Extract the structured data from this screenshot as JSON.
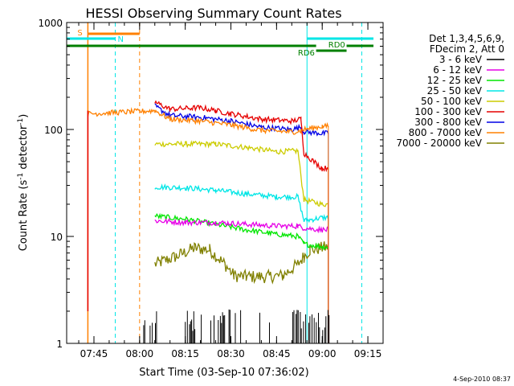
{
  "chart_data": {
    "type": "line",
    "title": "HESSI Observing Summary Count Rates",
    "xlabel": "Start Time (03-Sep-10 07:36:02)",
    "ylabel_main": "Count Rate (s",
    "ylabel_sup1": "-1",
    "ylabel_mid": " detector",
    "ylabel_sup2": "-1",
    "ylabel_end": ")",
    "y_scale": "log",
    "ylim": [
      1,
      1000
    ],
    "xlim": [
      "07:36:02",
      "09:20:00"
    ],
    "x_ticks": [
      "07:45",
      "08:00",
      "08:15",
      "08:30",
      "08:45",
      "09:00",
      "09:15"
    ],
    "y_ticks": [
      "1",
      "10",
      "100",
      "1000"
    ],
    "grid": false,
    "legend_placement": "right",
    "legend_header": [
      "Det 1,3,4,5,6,9,",
      "FDecim 2, Att 0"
    ],
    "series": [
      {
        "name": "3 - 6 keV",
        "color": "#000000",
        "points": [
          [
            "08:02",
            1.2
          ],
          [
            "08:05",
            1.5
          ],
          [
            "08:18",
            1.3
          ],
          [
            "08:22",
            1.6
          ],
          [
            "08:52",
            1.4
          ],
          [
            "09:00",
            1.8
          ]
        ]
      },
      {
        "name": "6 - 12 keV",
        "color": "#e600e6",
        "points": [
          [
            "08:05",
            14
          ],
          [
            "08:15",
            13.5
          ],
          [
            "08:25",
            13.5
          ],
          [
            "08:35",
            13
          ],
          [
            "08:45",
            12.5
          ],
          [
            "08:52",
            12.5
          ],
          [
            "08:54",
            12
          ],
          [
            "09:00",
            11.5
          ],
          [
            "09:02",
            11.5
          ]
        ]
      },
      {
        "name": "12 - 25 keV",
        "color": "#00e600",
        "points": [
          [
            "08:05",
            15.5
          ],
          [
            "08:15",
            14.5
          ],
          [
            "08:25",
            13
          ],
          [
            "08:35",
            11.5
          ],
          [
            "08:45",
            10.5
          ],
          [
            "08:52",
            10
          ],
          [
            "08:54",
            8.5
          ],
          [
            "09:00",
            8
          ],
          [
            "09:02",
            8
          ]
        ]
      },
      {
        "name": "25 - 50 keV",
        "color": "#00e6e6",
        "points": [
          [
            "08:05",
            29
          ],
          [
            "08:15",
            28.5
          ],
          [
            "08:25",
            27
          ],
          [
            "08:35",
            25
          ],
          [
            "08:45",
            23.5
          ],
          [
            "08:52",
            23.5
          ],
          [
            "08:54",
            14
          ],
          [
            "09:00",
            15
          ],
          [
            "09:02",
            15
          ]
        ]
      },
      {
        "name": "50 - 100 keV",
        "color": "#cccc00",
        "points": [
          [
            "08:05",
            73
          ],
          [
            "08:15",
            73
          ],
          [
            "08:25",
            73
          ],
          [
            "08:35",
            68
          ],
          [
            "08:45",
            62
          ],
          [
            "08:52",
            63
          ],
          [
            "08:54",
            22
          ],
          [
            "09:00",
            20
          ],
          [
            "09:02",
            20
          ]
        ]
      },
      {
        "name": "100 - 300 keV",
        "color": "#e60000",
        "points": [
          [
            "08:05",
            180
          ],
          [
            "08:10",
            155
          ],
          [
            "08:20",
            160
          ],
          [
            "08:25",
            150
          ],
          [
            "08:30",
            140
          ],
          [
            "08:40",
            125
          ],
          [
            "08:50",
            120
          ],
          [
            "08:53",
            125
          ],
          [
            "08:54",
            60
          ],
          [
            "09:00",
            43
          ],
          [
            "09:02",
            44
          ]
        ]
      },
      {
        "name": "300 - 800 keV",
        "color": "#0000e6",
        "points": [
          [
            "08:05",
            165
          ],
          [
            "08:10",
            135
          ],
          [
            "08:20",
            130
          ],
          [
            "08:30",
            120
          ],
          [
            "08:40",
            105
          ],
          [
            "08:50",
            100
          ],
          [
            "08:53",
            105
          ],
          [
            "08:54",
            95
          ],
          [
            "09:00",
            92
          ],
          [
            "09:02",
            92
          ]
        ]
      },
      {
        "name": "800 - 7000 keV",
        "color": "#ff8000",
        "points": [
          [
            "07:43",
            140
          ],
          [
            "08:05",
            150
          ],
          [
            "08:10",
            125
          ],
          [
            "08:20",
            120
          ],
          [
            "08:30",
            110
          ],
          [
            "08:40",
            98
          ],
          [
            "08:50",
            95
          ],
          [
            "08:53",
            97
          ],
          [
            "08:54",
            100
          ],
          [
            "09:00",
            107
          ],
          [
            "09:02",
            107
          ]
        ]
      },
      {
        "name": "7000 - 20000 keV",
        "color": "#808000",
        "points": [
          [
            "08:05",
            5.5
          ],
          [
            "08:12",
            6.5
          ],
          [
            "08:18",
            7.8
          ],
          [
            "08:23",
            7.5
          ],
          [
            "08:28",
            5.5
          ],
          [
            "08:31",
            4.3
          ],
          [
            "08:35",
            4.2
          ],
          [
            "08:42",
            4.2
          ],
          [
            "08:47",
            4.3
          ],
          [
            "08:52",
            5.5
          ],
          [
            "08:54",
            6.5
          ],
          [
            "08:56",
            7.5
          ],
          [
            "09:00",
            7.8
          ],
          [
            "09:02",
            8
          ]
        ]
      }
    ],
    "annotations": {
      "S_label": "S",
      "N_label": "N",
      "RD0_label": "RD0",
      "RD6_label": "RD6",
      "saa_color": "#ff8000",
      "night_color": "#00e6e6",
      "data_color": "#008000"
    },
    "timestamp": "4-Sep-2010 08:37"
  }
}
